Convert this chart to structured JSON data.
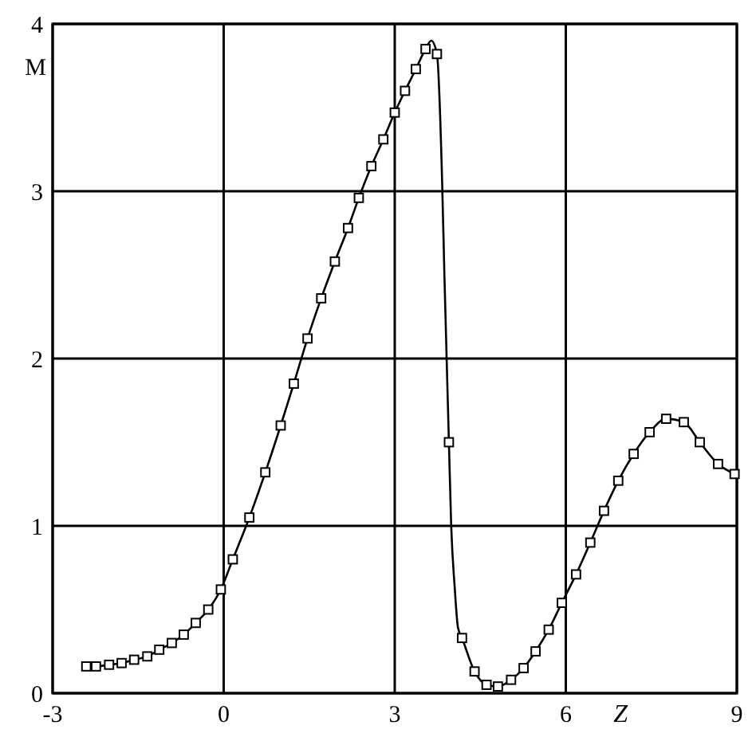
{
  "chart_data": {
    "type": "line",
    "xlabel": "Z",
    "ylabel": "M",
    "xlim": [
      -3,
      9
    ],
    "ylim": [
      0,
      4
    ],
    "xticks": [
      -3,
      0,
      3,
      6,
      9
    ],
    "yticks": [
      0,
      1,
      2,
      3,
      4
    ],
    "grid": true,
    "series": [
      {
        "type": "line",
        "color": "#000000",
        "marker": "none",
        "line_style": "solid",
        "x": [
          -2.41,
          -2.24,
          -2.01,
          -1.79,
          -1.57,
          -1.34,
          -1.13,
          -0.91,
          -0.7,
          -0.49,
          -0.27,
          -0.05,
          0.16,
          0.45,
          0.73,
          1.0,
          1.23,
          1.47,
          1.71,
          1.95,
          2.18,
          2.37,
          2.59,
          2.8,
          3.0,
          3.18,
          3.37,
          3.54,
          3.64,
          3.74,
          3.83,
          3.87,
          3.95,
          3.99,
          4.05,
          4.11,
          4.18,
          4.4,
          4.61,
          4.81,
          5.04,
          5.26,
          5.47,
          5.7,
          5.93,
          6.18,
          6.43,
          6.67,
          6.92,
          7.19,
          7.47,
          7.76,
          8.07,
          8.35,
          8.67,
          8.96
        ],
        "values": [
          0.16,
          0.16,
          0.17,
          0.18,
          0.2,
          0.22,
          0.26,
          0.3,
          0.35,
          0.42,
          0.5,
          0.62,
          0.8,
          1.05,
          1.32,
          1.6,
          1.85,
          2.12,
          2.36,
          2.58,
          2.78,
          2.96,
          3.15,
          3.31,
          3.47,
          3.6,
          3.73,
          3.85,
          3.9,
          3.82,
          3.07,
          2.51,
          1.5,
          1.0,
          0.64,
          0.39,
          0.33,
          0.13,
          0.05,
          0.04,
          0.08,
          0.15,
          0.25,
          0.38,
          0.54,
          0.71,
          0.9,
          1.09,
          1.27,
          1.43,
          1.56,
          1.64,
          1.62,
          1.5,
          1.37,
          1.31
        ]
      },
      {
        "type": "scatter",
        "color": "#000000",
        "marker": "square",
        "x": [
          -2.41,
          -2.24,
          -2.01,
          -1.79,
          -1.57,
          -1.34,
          -1.13,
          -0.91,
          -0.7,
          -0.49,
          -0.27,
          -0.05,
          0.16,
          0.45,
          0.73,
          1.0,
          1.23,
          1.47,
          1.71,
          1.95,
          2.18,
          2.37,
          2.59,
          2.8,
          3.0,
          3.18,
          3.37,
          3.54,
          3.74,
          3.95,
          4.18,
          4.4,
          4.61,
          4.81,
          5.04,
          5.26,
          5.47,
          5.7,
          5.93,
          6.18,
          6.43,
          6.67,
          6.92,
          7.19,
          7.47,
          7.76,
          8.07,
          8.35,
          8.67,
          8.96
        ],
        "values": [
          0.16,
          0.16,
          0.17,
          0.18,
          0.2,
          0.22,
          0.26,
          0.3,
          0.35,
          0.42,
          0.5,
          0.62,
          0.8,
          1.05,
          1.32,
          1.6,
          1.85,
          2.12,
          2.36,
          2.58,
          2.78,
          2.96,
          3.15,
          3.31,
          3.47,
          3.6,
          3.73,
          3.85,
          3.82,
          1.5,
          0.33,
          0.13,
          0.05,
          0.04,
          0.08,
          0.15,
          0.25,
          0.38,
          0.54,
          0.71,
          0.9,
          1.09,
          1.27,
          1.43,
          1.56,
          1.64,
          1.62,
          1.5,
          1.37,
          1.31
        ]
      }
    ]
  }
}
